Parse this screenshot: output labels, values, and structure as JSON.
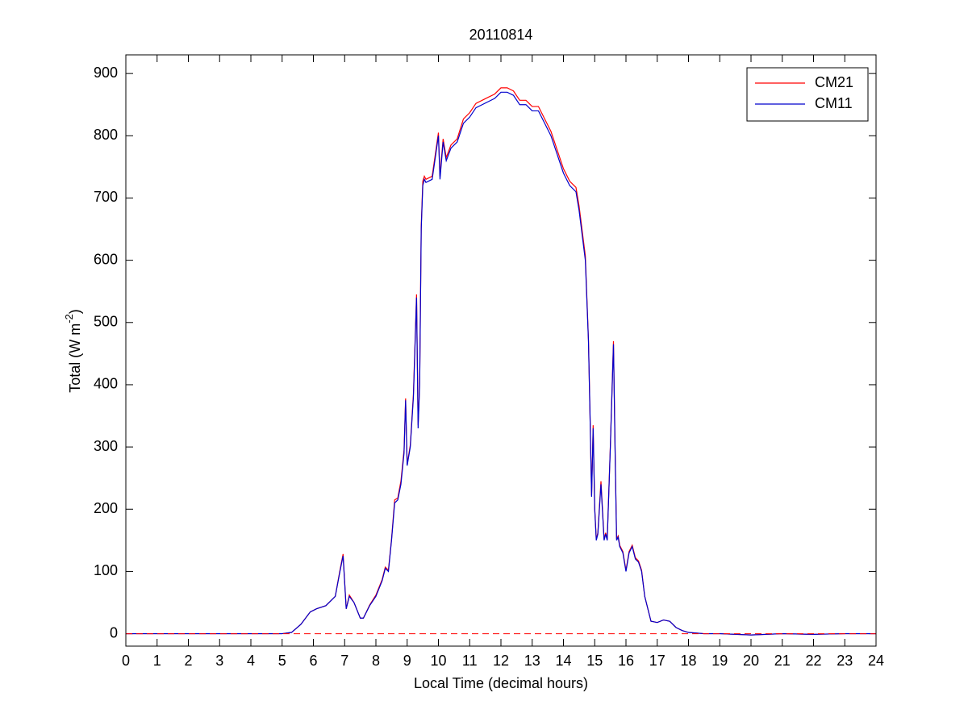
{
  "chart_data": {
    "type": "line",
    "title": "20110814",
    "xlabel": "Local Time (decimal hours)",
    "ylabel": [
      "Total (W m",
      "-2",
      ")"
    ],
    "xlim": [
      0,
      24
    ],
    "ylim": [
      -20,
      930
    ],
    "xticks": [
      0,
      1,
      2,
      3,
      4,
      5,
      6,
      7,
      8,
      9,
      10,
      11,
      12,
      13,
      14,
      15,
      16,
      17,
      18,
      19,
      20,
      21,
      22,
      23,
      24
    ],
    "yticks": [
      0,
      100,
      200,
      300,
      400,
      500,
      600,
      700,
      800,
      900
    ],
    "legend": "upper right",
    "hline": {
      "y": 0,
      "color": "#ff0000",
      "style": "dashed"
    },
    "x": [
      0,
      1,
      2,
      3,
      4,
      5,
      5.3,
      5.6,
      5.9,
      6.1,
      6.4,
      6.7,
      6.85,
      6.95,
      7.05,
      7.15,
      7.3,
      7.5,
      7.6,
      7.8,
      8.0,
      8.2,
      8.3,
      8.4,
      8.5,
      8.6,
      8.7,
      8.8,
      8.9,
      8.95,
      9.0,
      9.1,
      9.2,
      9.3,
      9.35,
      9.4,
      9.45,
      9.5,
      9.55,
      9.6,
      9.8,
      10.0,
      10.05,
      10.15,
      10.25,
      10.4,
      10.6,
      10.8,
      11.0,
      11.2,
      11.4,
      11.6,
      11.8,
      12.0,
      12.2,
      12.4,
      12.6,
      12.8,
      13.0,
      13.2,
      13.4,
      13.6,
      13.8,
      14.0,
      14.2,
      14.4,
      14.5,
      14.6,
      14.7,
      14.8,
      14.85,
      14.9,
      14.95,
      15.0,
      15.05,
      15.1,
      15.2,
      15.3,
      15.35,
      15.4,
      15.5,
      15.6,
      15.65,
      15.7,
      15.75,
      15.8,
      15.9,
      16.0,
      16.1,
      16.2,
      16.3,
      16.4,
      16.5,
      16.6,
      16.8,
      17.0,
      17.2,
      17.4,
      17.6,
      17.8,
      18.0,
      18.5,
      19,
      20,
      21,
      22,
      23,
      24
    ],
    "series": [
      {
        "name": "CM21",
        "color": "#ff0000",
        "values": [
          0,
          0,
          0,
          0,
          0,
          0,
          2,
          15,
          35,
          40,
          45,
          60,
          102,
          128,
          40,
          62,
          50,
          25,
          25,
          46,
          62,
          87,
          107,
          102,
          152,
          215,
          218,
          245,
          295,
          378,
          272,
          303,
          385,
          545,
          335,
          405,
          655,
          727,
          735,
          730,
          735,
          805,
          735,
          795,
          765,
          785,
          795,
          827,
          837,
          852,
          857,
          862,
          867,
          877,
          877,
          872,
          857,
          857,
          847,
          847,
          827,
          807,
          777,
          747,
          727,
          717,
          687,
          647,
          607,
          472,
          352,
          222,
          335,
          202,
          152,
          162,
          245,
          152,
          162,
          152,
          302,
          470,
          302,
          152,
          157,
          142,
          132,
          102,
          132,
          142,
          122,
          117,
          102,
          60,
          20,
          18,
          22,
          20,
          10,
          5,
          2,
          0,
          0,
          -2,
          0,
          -1,
          0,
          0
        ]
      },
      {
        "name": "CM11",
        "color": "#0000cc",
        "values": [
          0,
          0,
          0,
          0,
          0,
          0,
          2,
          15,
          35,
          40,
          45,
          60,
          100,
          125,
          40,
          60,
          50,
          25,
          25,
          45,
          60,
          85,
          105,
          100,
          150,
          210,
          215,
          240,
          290,
          375,
          270,
          300,
          380,
          540,
          330,
          400,
          650,
          720,
          730,
          725,
          730,
          800,
          730,
          790,
          760,
          780,
          790,
          820,
          830,
          845,
          850,
          855,
          860,
          870,
          870,
          865,
          850,
          850,
          840,
          840,
          820,
          800,
          770,
          740,
          720,
          710,
          680,
          640,
          600,
          470,
          350,
          220,
          330,
          200,
          150,
          160,
          240,
          150,
          160,
          150,
          300,
          465,
          300,
          150,
          155,
          140,
          130,
          100,
          130,
          140,
          120,
          115,
          100,
          60,
          20,
          18,
          22,
          20,
          10,
          5,
          2,
          0,
          0,
          -2,
          0,
          -1,
          0,
          0
        ]
      }
    ]
  }
}
